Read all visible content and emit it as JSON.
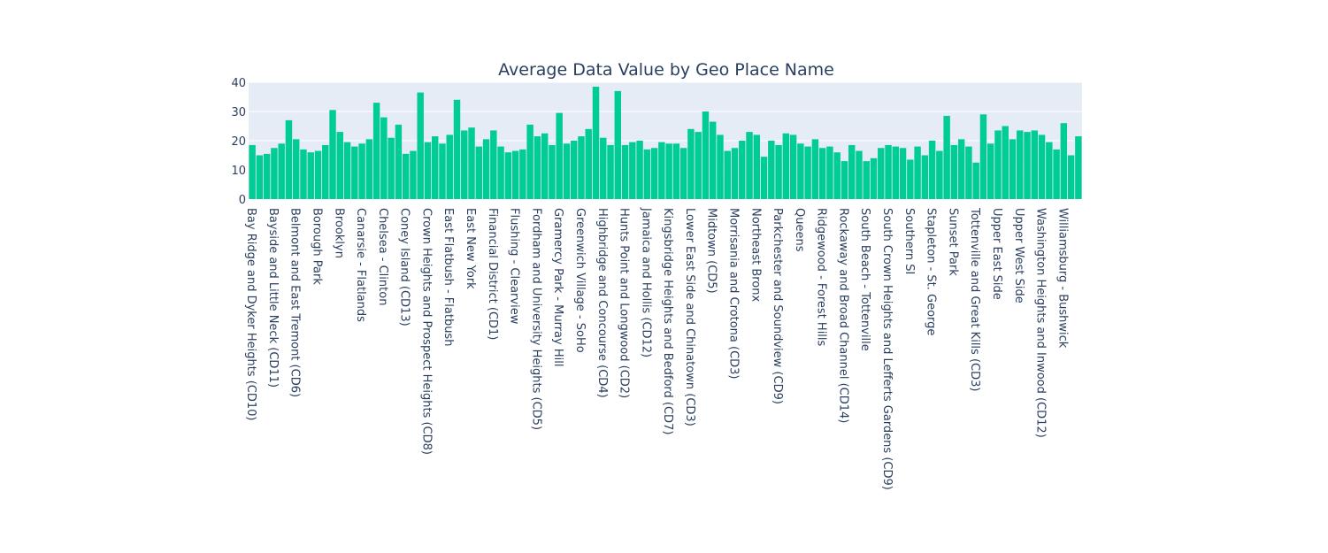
{
  "chart_data": {
    "type": "bar",
    "title": "Average Data Value by Geo Place Name",
    "categories": [
      "Bay Ridge and Dyker Heights (CD10)",
      null,
      null,
      "Bayside and Little Neck (CD11)",
      null,
      null,
      "Belmont and East Tremont (CD6)",
      null,
      null,
      "Borough Park",
      null,
      null,
      "Brooklyn",
      null,
      null,
      "Canarsie - Flatlands",
      null,
      null,
      "Chelsea - Clinton",
      null,
      null,
      "Coney Island (CD13)",
      null,
      null,
      "Crown Heights and Prospect Heights (CD8)",
      null,
      null,
      "East Flatbush - Flatbush",
      null,
      null,
      "East New York",
      null,
      null,
      "Financial District (CD1)",
      null,
      null,
      "Flushing - Clearview",
      null,
      null,
      "Fordham and University Heights (CD5)",
      null,
      null,
      "Gramercy Park - Murray Hill",
      null,
      null,
      "Greenwich Village - SoHo",
      null,
      null,
      "Highbridge and Concourse (CD4)",
      null,
      null,
      "Hunts Point and Longwood (CD2)",
      null,
      null,
      "Jamaica and Hollis (CD12)",
      null,
      null,
      "Kingsbridge Heights and Bedford (CD7)",
      null,
      null,
      "Lower East Side and Chinatown (CD3)",
      null,
      null,
      "Midtown (CD5)",
      null,
      null,
      "Morrisania and Crotona (CD3)",
      null,
      null,
      "Northeast Bronx",
      null,
      null,
      "Parkchester and Soundview (CD9)",
      null,
      null,
      "Queens",
      null,
      null,
      "Ridgewood - Forest Hills",
      null,
      null,
      "Rockaway and Broad Channel (CD14)",
      null,
      null,
      "South Beach - Tottenville",
      null,
      null,
      "South Crown Heights and Lefferts Gardens (CD9)",
      null,
      null,
      "Southern SI",
      null,
      null,
      "Stapleton - St. George",
      null,
      null,
      "Sunset Park",
      null,
      null,
      "Tottenville and Great Kills (CD3)",
      null,
      null,
      "Upper East Side",
      null,
      null,
      "Upper West Side",
      null,
      null,
      "Washington Heights and Inwood (CD12)",
      null,
      null,
      "Williamsburg - Bushwick",
      null,
      null
    ],
    "values": [
      18.5,
      15,
      15.5,
      17.5,
      19,
      27,
      20.5,
      17,
      16,
      16.5,
      18.5,
      30.5,
      23,
      19.5,
      18,
      19,
      20.5,
      33,
      28,
      21,
      25.5,
      15.5,
      16.5,
      36.5,
      19.5,
      21.5,
      19,
      22,
      34,
      23.5,
      24.5,
      18,
      20.5,
      23.5,
      18,
      16,
      16.5,
      17,
      25.5,
      21.5,
      22.5,
      18.5,
      29.5,
      19,
      20,
      21.5,
      24,
      38.5,
      21,
      18.5,
      37,
      18.5,
      19.5,
      20,
      17,
      17.5,
      19.5,
      19,
      19,
      17.5,
      24,
      23,
      30,
      26.5,
      22,
      16.5,
      17.5,
      20,
      23,
      22,
      14.5,
      20,
      18.5,
      22.5,
      22,
      19,
      18,
      20.5,
      17.5,
      18,
      16,
      13,
      18.5,
      16.5,
      13,
      14,
      17.5,
      18.5,
      18,
      17.5,
      13.5,
      18,
      15,
      20,
      16.5,
      28.5,
      18.5,
      20.5,
      18,
      12.5,
      29,
      19,
      23.5,
      25,
      20.5,
      23.5,
      23,
      23.5,
      22,
      19.5,
      17,
      26,
      15,
      21.5
    ],
    "color": "#00cc96",
    "ylim": [
      0,
      40
    ],
    "yticks": [
      0,
      10,
      20,
      30,
      40
    ],
    "grid": true
  }
}
